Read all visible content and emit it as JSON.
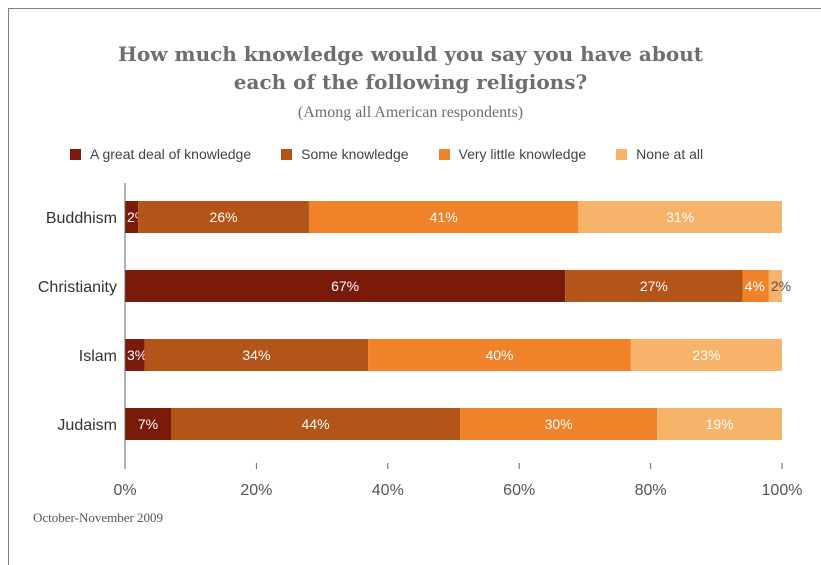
{
  "chart_data": {
    "type": "bar",
    "orientation": "horizontal",
    "stacked": true,
    "title_lines": [
      "How much knowledge would you say you have about",
      "each of the following religions?"
    ],
    "subtitle": "(Among all American respondents)",
    "categories": [
      "Buddhism",
      "Christianity",
      "Islam",
      "Judaism"
    ],
    "series": [
      {
        "name": "A great deal of knowledge",
        "color": "#7a1a0b",
        "values": [
          2,
          67,
          3,
          7
        ],
        "labels": [
          "2%",
          "67%",
          "3%",
          "7%"
        ]
      },
      {
        "name": "Some knowledge",
        "color": "#b35418",
        "values": [
          26,
          27,
          34,
          44
        ],
        "labels": [
          "26%",
          "27%",
          "34%",
          "44%"
        ]
      },
      {
        "name": "Very little knowledge",
        "color": "#f0832a",
        "values": [
          41,
          4,
          40,
          30
        ],
        "labels": [
          "41%",
          "4%",
          "40%",
          "30%"
        ]
      },
      {
        "name": "None at all",
        "color": "#f7b36a",
        "values": [
          31,
          2,
          23,
          19
        ],
        "labels": [
          "31%",
          "2%",
          "23%",
          "19%"
        ]
      }
    ],
    "xlim": [
      0,
      100
    ],
    "xticks": [
      0,
      20,
      40,
      60,
      80,
      100
    ],
    "xtick_labels": [
      "0%",
      "20%",
      "40%",
      "60%",
      "80%",
      "100%"
    ],
    "legend_position": "top",
    "grid": false
  },
  "footer": "October-November 2009"
}
